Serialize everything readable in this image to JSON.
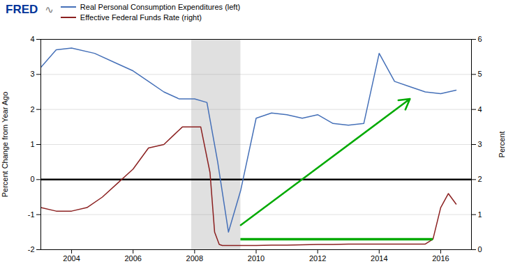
{
  "chart_data": {
    "type": "line",
    "series": [
      {
        "name": "Real Personal Consumption Expenditures (left)",
        "color": "#4570b8",
        "x": [
          2003.0,
          2003.5,
          2004.0,
          2004.75,
          2005.5,
          2006.0,
          2006.5,
          2007.0,
          2007.5,
          2008.0,
          2008.4,
          2008.75,
          2009.1,
          2009.5,
          2010.0,
          2010.5,
          2011.0,
          2011.5,
          2012.0,
          2012.5,
          2013.0,
          2013.5,
          2014.0,
          2014.5,
          2015.0,
          2015.5,
          2016.0,
          2016.5
        ],
        "values": [
          3.2,
          3.7,
          3.75,
          3.6,
          3.3,
          3.1,
          2.8,
          2.5,
          2.3,
          2.3,
          2.2,
          0.5,
          -1.5,
          -0.3,
          1.75,
          1.9,
          1.85,
          1.75,
          1.85,
          1.6,
          1.55,
          1.6,
          3.6,
          2.8,
          2.65,
          2.5,
          2.45,
          2.55
        ]
      },
      {
        "name": "Effective Federal Funds Rate (right)",
        "color": "#8b2020",
        "axis": "y2",
        "x": [
          2003.0,
          2003.5,
          2004.0,
          2004.5,
          2005.0,
          2005.5,
          2006.0,
          2006.5,
          2007.0,
          2007.3,
          2007.6,
          2007.9,
          2008.2,
          2008.5,
          2008.65,
          2008.8,
          2008.9,
          2009.0,
          2009.2,
          2009.5,
          2010.0,
          2010.5,
          2011.0,
          2011.5,
          2012.0,
          2012.5,
          2013.0,
          2013.5,
          2014.0,
          2014.5,
          2015.0,
          2015.5,
          2015.75,
          2016.0,
          2016.25,
          2016.5
        ],
        "values": [
          1.2,
          1.1,
          1.1,
          1.2,
          1.5,
          1.9,
          2.3,
          2.9,
          3.0,
          3.25,
          3.5,
          3.5,
          3.5,
          2.2,
          0.5,
          0.15,
          0.12,
          0.12,
          0.12,
          0.12,
          0.12,
          0.13,
          0.13,
          0.14,
          0.15,
          0.15,
          0.16,
          0.16,
          0.16,
          0.16,
          0.16,
          0.16,
          0.3,
          1.2,
          1.6,
          1.3
        ]
      }
    ],
    "ylabel": "Percent Change from Year Ago",
    "y2label": "Percent",
    "xlim": [
      2003.0,
      2017.0
    ],
    "xticks": [
      2004,
      2006,
      2008,
      2010,
      2012,
      2014,
      2016
    ],
    "ylim": [
      -2,
      4
    ],
    "yticks": [
      -2,
      -1,
      0,
      1,
      2,
      3,
      4
    ],
    "y2lim": [
      0,
      6
    ],
    "y2ticks": [
      0,
      1,
      2,
      3,
      4,
      5,
      6
    ],
    "grid": true,
    "legend": "top left",
    "shading": {
      "x": [
        2007.9,
        2009.5
      ],
      "color": "#e0e0e0"
    },
    "hline": {
      "y": 0.0,
      "color": "black"
    },
    "annotations": [
      {
        "type": "text",
        "text": "FRED",
        "color": "#003399"
      },
      {
        "type": "text",
        "text": "∿"
      },
      {
        "type": "arrow",
        "x": [
          2009.5,
          2015.0
        ],
        "y": [
          -1.3,
          2.3
        ],
        "color": "#00aa00"
      },
      {
        "type": "hline",
        "x": [
          2009.5,
          2015.75
        ],
        "y": -1.7,
        "color": "#00aa00"
      }
    ]
  }
}
